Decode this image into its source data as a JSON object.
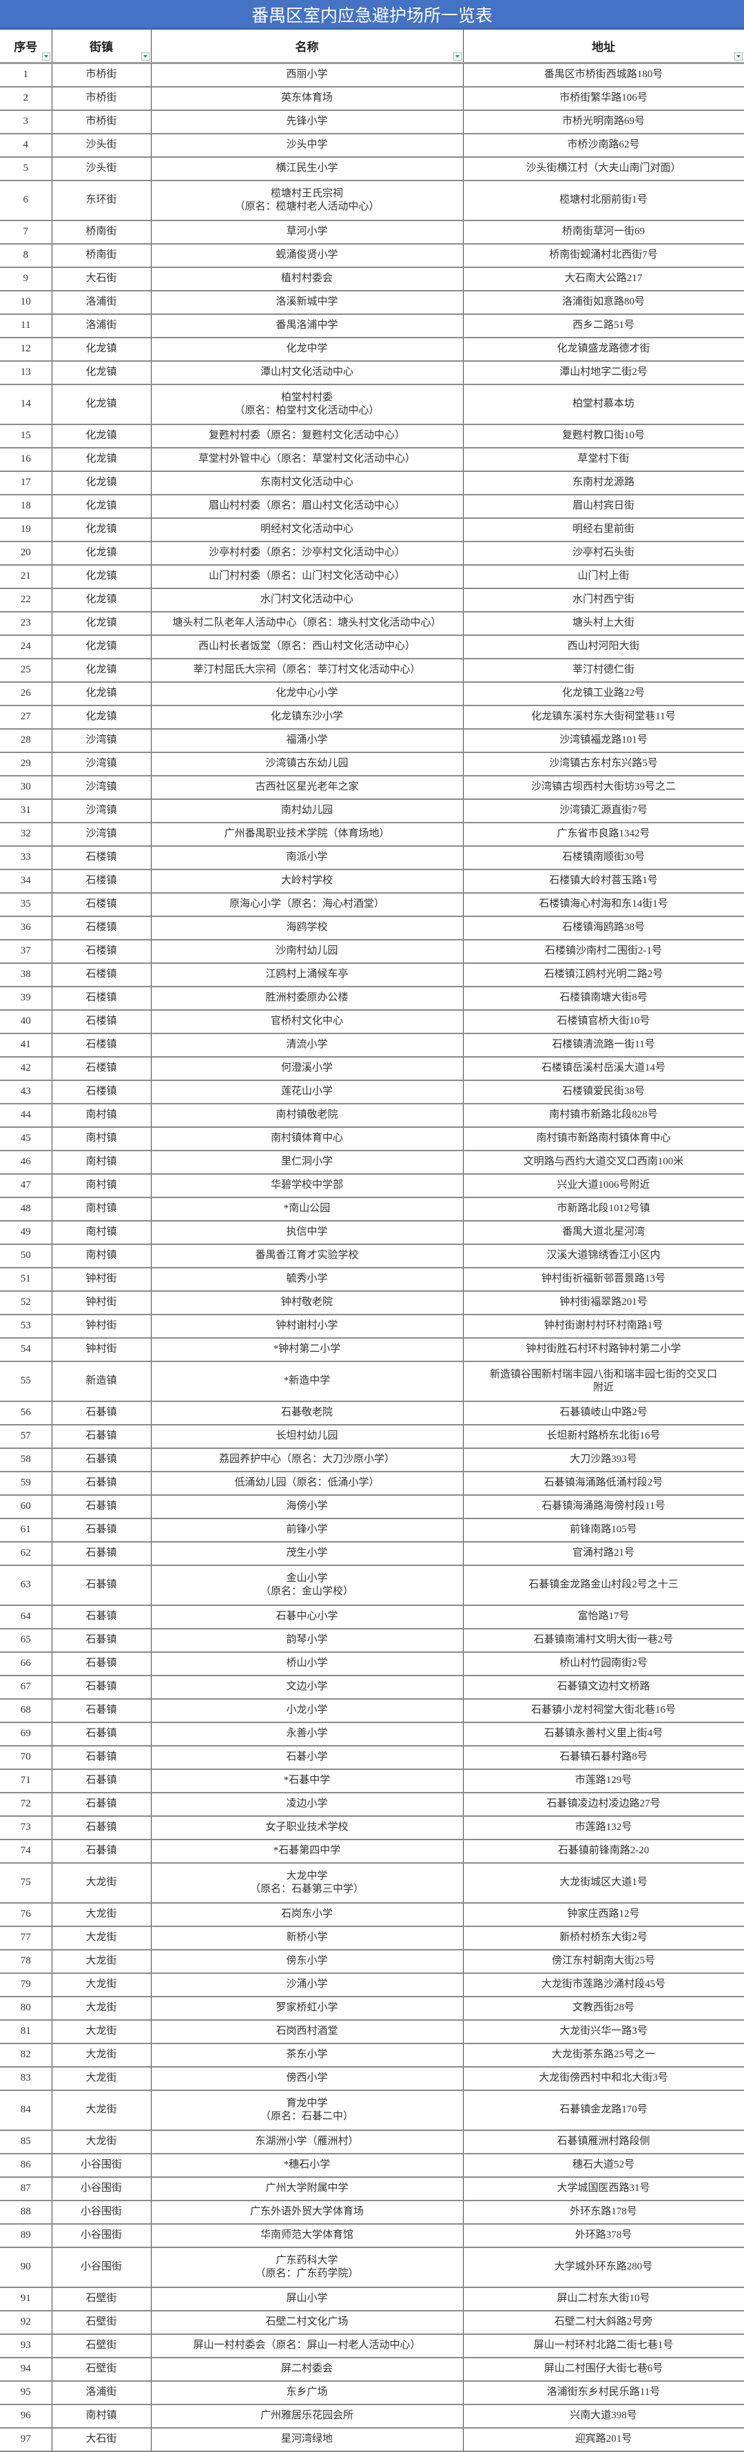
{
  "title": "番禺区室内应急避护场所一览表",
  "columns": [
    "序号",
    "街镇",
    "名称",
    "地址"
  ],
  "filter_icon": "dropdown-filter-icon",
  "accent_color": "#4472C4",
  "rows": [
    [
      "1",
      "市桥街",
      "西丽小学",
      "番禺区市桥街西城路180号"
    ],
    [
      "2",
      "市桥街",
      "英东体育场",
      "市桥街繁华路106号"
    ],
    [
      "3",
      "市桥街",
      "先锋小学",
      "市桥光明南路69号"
    ],
    [
      "4",
      "沙头街",
      "沙头中学",
      "市桥沙南路62号"
    ],
    [
      "5",
      "沙头街",
      "横江民生小学",
      "沙头街横江村（大夫山南门对面）"
    ],
    [
      "6",
      "东环街",
      "榄塘村王氏宗祠\n（原名：榄塘村老人活动中心）",
      "榄塘村北丽前街1号"
    ],
    [
      "7",
      "桥南街",
      "草河小学",
      "桥南街草河一街69"
    ],
    [
      "8",
      "桥南街",
      "蚬涌俊贤小学",
      "桥南街蚬涌村北西街7号"
    ],
    [
      "9",
      "大石街",
      "植村村委会",
      "大石南大公路217"
    ],
    [
      "10",
      "洛浦街",
      "洛溪新城中学",
      "洛浦街如意路80号"
    ],
    [
      "11",
      "洛浦街",
      "番禺洛浦中学",
      "西乡二路51号"
    ],
    [
      "12",
      "化龙镇",
      "化龙中学",
      "化龙镇盛龙路德才街"
    ],
    [
      "13",
      "化龙镇",
      "潭山村文化活动中心",
      "潭山村地字二街2号"
    ],
    [
      "14",
      "化龙镇",
      "柏堂村村委\n（原名：柏堂村文化活动中心）",
      "柏堂村慕本坊"
    ],
    [
      "15",
      "化龙镇",
      "复甦村村委（原名：复甦村文化活动中心）",
      "复甦村教口街10号"
    ],
    [
      "16",
      "化龙镇",
      "草堂村外管中心（原名：草堂村文化活动中心）",
      "草堂村下街"
    ],
    [
      "17",
      "化龙镇",
      "东南村文化活动中心",
      "东南村龙源路"
    ],
    [
      "18",
      "化龙镇",
      "眉山村村委（原名：眉山村文化活动中心）",
      "眉山村宾日街"
    ],
    [
      "19",
      "化龙镇",
      "明经村文化活动中心",
      "明经右里前街"
    ],
    [
      "20",
      "化龙镇",
      "沙亭村村委（原名：沙亭村文化活动中心）",
      "沙亭村石头街"
    ],
    [
      "21",
      "化龙镇",
      "山门村村委（原名：山门村文化活动中心）",
      "山门村上街"
    ],
    [
      "22",
      "化龙镇",
      "水门村文化活动中心",
      "水门村西宁街"
    ],
    [
      "23",
      "化龙镇",
      "塘头村二队老年人活动中心（原名：塘头村文化活动中心）",
      "塘头村上大街"
    ],
    [
      "24",
      "化龙镇",
      "西山村长者饭堂（原名：西山村文化活动中心）",
      "西山村河阳大街"
    ],
    [
      "25",
      "化龙镇",
      "莘汀村屈氏大宗祠（原名：莘汀村文化活动中心）",
      "莘汀村德仁街"
    ],
    [
      "26",
      "化龙镇",
      "化龙中心小学",
      "化龙镇工业路22号"
    ],
    [
      "27",
      "化龙镇",
      "化龙镇东沙小学",
      "化龙镇东溪村东大街祠堂巷11号"
    ],
    [
      "28",
      "沙湾镇",
      "福涌小学",
      "沙湾镇福龙路101号"
    ],
    [
      "29",
      "沙湾镇",
      "沙湾镇古东幼儿园",
      "沙湾镇古东村东兴路5号"
    ],
    [
      "30",
      "沙湾镇",
      "古西社区星光老年之家",
      "沙湾镇古坝西村大街坊39号之二"
    ],
    [
      "31",
      "沙湾镇",
      "南村幼儿园",
      "沙湾镇汇源直街7号"
    ],
    [
      "32",
      "沙湾镇",
      "广州番禺职业技术学院（体育场地）",
      "广东省市良路1342号"
    ],
    [
      "33",
      "石楼镇",
      "南派小学",
      "石楼镇南顺街30号"
    ],
    [
      "34",
      "石楼镇",
      "大岭村学校",
      "石楼镇大岭村菩玉路1号"
    ],
    [
      "35",
      "石楼镇",
      "原海心小学（原名：海心村酒堂）",
      "石楼镇海心村海和东14街1号"
    ],
    [
      "36",
      "石楼镇",
      "海鸥学校",
      "石楼镇海鸥路38号"
    ],
    [
      "37",
      "石楼镇",
      "沙南村幼儿园",
      "石楼镇沙南村二围街2-1号"
    ],
    [
      "38",
      "石楼镇",
      "江鸥村上涌候车亭",
      "石楼镇江鸥村光明二路2号"
    ],
    [
      "39",
      "石楼镇",
      "胜洲村委原办公楼",
      "石楼镇南塘大街8号"
    ],
    [
      "40",
      "石楼镇",
      "官桥村文化中心",
      "石楼镇官桥大街10号"
    ],
    [
      "41",
      "石楼镇",
      "清流小学",
      "石楼镇清流路一街11号"
    ],
    [
      "42",
      "石楼镇",
      "何澄溪小学",
      "石楼镇岳溪村岳溪大道14号"
    ],
    [
      "43",
      "石楼镇",
      "莲花山小学",
      "石楼镇爱民街38号"
    ],
    [
      "44",
      "南村镇",
      "南村镇敬老院",
      "南村镇市新路北段828号"
    ],
    [
      "45",
      "南村镇",
      "南村镇体育中心",
      "南村镇市新路南村镇体育中心"
    ],
    [
      "46",
      "南村镇",
      "里仁洞小学",
      "文明路与西约大道交叉口西南100米"
    ],
    [
      "47",
      "南村镇",
      "华碧学校中学部",
      "兴业大道1006号附近"
    ],
    [
      "48",
      "南村镇",
      "*南山公园",
      "市新路北段1012号镇"
    ],
    [
      "49",
      "南村镇",
      "执信中学",
      "番禺大道北星河湾"
    ],
    [
      "50",
      "南村镇",
      "番禺香江育才实验学校",
      "汉溪大道锦绣香江小区内"
    ],
    [
      "51",
      "钟村街",
      "毓秀小学",
      "钟村街祈福新邨晋景路13号"
    ],
    [
      "52",
      "钟村街",
      "钟村敬老院",
      "钟村街福翠路201号"
    ],
    [
      "53",
      "钟村街",
      "钟村谢村小学",
      "钟村街谢村村环村南路1号"
    ],
    [
      "54",
      "钟村街",
      "*钟村第二小学",
      "钟村街胜石村环村路钟村第二小学"
    ],
    [
      "55",
      "新造镇",
      "*新造中学",
      "新造镇谷围新村瑞丰园八街和瑞丰园七街的交叉口\n附近"
    ],
    [
      "56",
      "石碁镇",
      "石碁敬老院",
      "石碁镇岐山中路2号"
    ],
    [
      "57",
      "石碁镇",
      "长坦村幼儿园",
      "长坦新村路桥东北街16号"
    ],
    [
      "58",
      "石碁镇",
      "荔园养护中心（原名：大刀沙原小学）",
      "大刀沙路393号"
    ],
    [
      "59",
      "石碁镇",
      "低涌幼儿园（原名：低涌小学）",
      "石碁镇海涌路低涌村段2号"
    ],
    [
      "60",
      "石碁镇",
      "海傍小学",
      "石碁镇海涌路海傍村段11号"
    ],
    [
      "61",
      "石碁镇",
      "前锋小学",
      "前锋南路105号"
    ],
    [
      "62",
      "石碁镇",
      "茂生小学",
      "官涌村路21号"
    ],
    [
      "63",
      "石碁镇",
      "金山小学\n（原名：金山学校）",
      "石碁镇金龙路金山村段2号之十三"
    ],
    [
      "64",
      "石碁镇",
      "石碁中心小学",
      "富怡路17号"
    ],
    [
      "65",
      "石碁镇",
      "韵琴小学",
      "石碁镇南浦村文明大街一巷2号"
    ],
    [
      "66",
      "石碁镇",
      "桥山小学",
      "桥山村竹园南街2号"
    ],
    [
      "67",
      "石碁镇",
      "文边小学",
      "石碁镇文边村文桥路"
    ],
    [
      "68",
      "石碁镇",
      "小龙小学",
      "石碁镇小龙村祠堂大街北巷16号"
    ],
    [
      "69",
      "石碁镇",
      "永善小学",
      "石碁镇永善村义里上街4号"
    ],
    [
      "70",
      "石碁镇",
      "石碁小学",
      "石碁镇石碁村路8号"
    ],
    [
      "71",
      "石碁镇",
      "*石碁中学",
      "市莲路129号"
    ],
    [
      "72",
      "石碁镇",
      "凌边小学",
      "石碁镇凌边村凌边路27号"
    ],
    [
      "73",
      "石碁镇",
      "女子职业技术学校",
      "市莲路132号"
    ],
    [
      "74",
      "石碁镇",
      "*石碁第四中学",
      "石碁镇前锋南路2-20"
    ],
    [
      "75",
      "大龙街",
      "大龙中学\n（原名：石碁第三中学）",
      "大龙街城区大道1号"
    ],
    [
      "76",
      "大龙街",
      "石岗东小学",
      "钟家庄西路12号"
    ],
    [
      "77",
      "大龙街",
      "新桥小学",
      "新桥村桥东大街2号"
    ],
    [
      "78",
      "大龙街",
      "傍东小学",
      "傍江东村朝南大街25号"
    ],
    [
      "79",
      "大龙街",
      "沙涌小学",
      "大龙街市莲路沙涌村段45号"
    ],
    [
      "80",
      "大龙街",
      "罗家桥虹小学",
      "文教西街28号"
    ],
    [
      "81",
      "大龙街",
      "石岗西村酒堂",
      "大龙街兴华一路3号"
    ],
    [
      "82",
      "大龙街",
      "茶东小学",
      "大龙街茶东路25号之一"
    ],
    [
      "83",
      "大龙街",
      "傍西小学",
      "大龙街傍西村中和北大街3号"
    ],
    [
      "84",
      "大龙街",
      "育龙中学\n（原名：石碁二中）",
      "石碁镇金龙路170号"
    ],
    [
      "85",
      "大龙街",
      "东湖洲小学（雁洲村）",
      "石碁镇雁洲村路段侧"
    ],
    [
      "86",
      "小谷围街",
      "*穗石小学",
      "穗石大道52号"
    ],
    [
      "87",
      "小谷围街",
      "广州大学附属中学",
      "大学城国医西路31号"
    ],
    [
      "88",
      "小谷围街",
      "广东外语外贸大学体育场",
      "外环东路178号"
    ],
    [
      "89",
      "小谷围街",
      "华南师范大学体育馆",
      "外环路378号"
    ],
    [
      "90",
      "小谷围街",
      "广东药科大学\n（原名：广东药学院）",
      "大学城外环东路280号"
    ],
    [
      "91",
      "石壁街",
      "屏山小学",
      "屏山二村东大街10号"
    ],
    [
      "92",
      "石壁街",
      "石壁二村文化广场",
      "石壁二村大斜路2号旁"
    ],
    [
      "93",
      "石壁街",
      "屏山一村村委会（原名：屏山一村老人活动中心）",
      "屏山一村环村北路二街七巷1号"
    ],
    [
      "94",
      "石壁街",
      "屏二村委会",
      "屏山二村围仔大街七巷6号"
    ],
    [
      "95",
      "洛浦街",
      "东乡广场",
      "洛浦街东乡村民乐路11号"
    ],
    [
      "96",
      "南村镇",
      "广州雅居乐花园会所",
      "兴南大道398号"
    ],
    [
      "97",
      "大石街",
      "星河湾绿地",
      "迎宾路201号"
    ]
  ]
}
